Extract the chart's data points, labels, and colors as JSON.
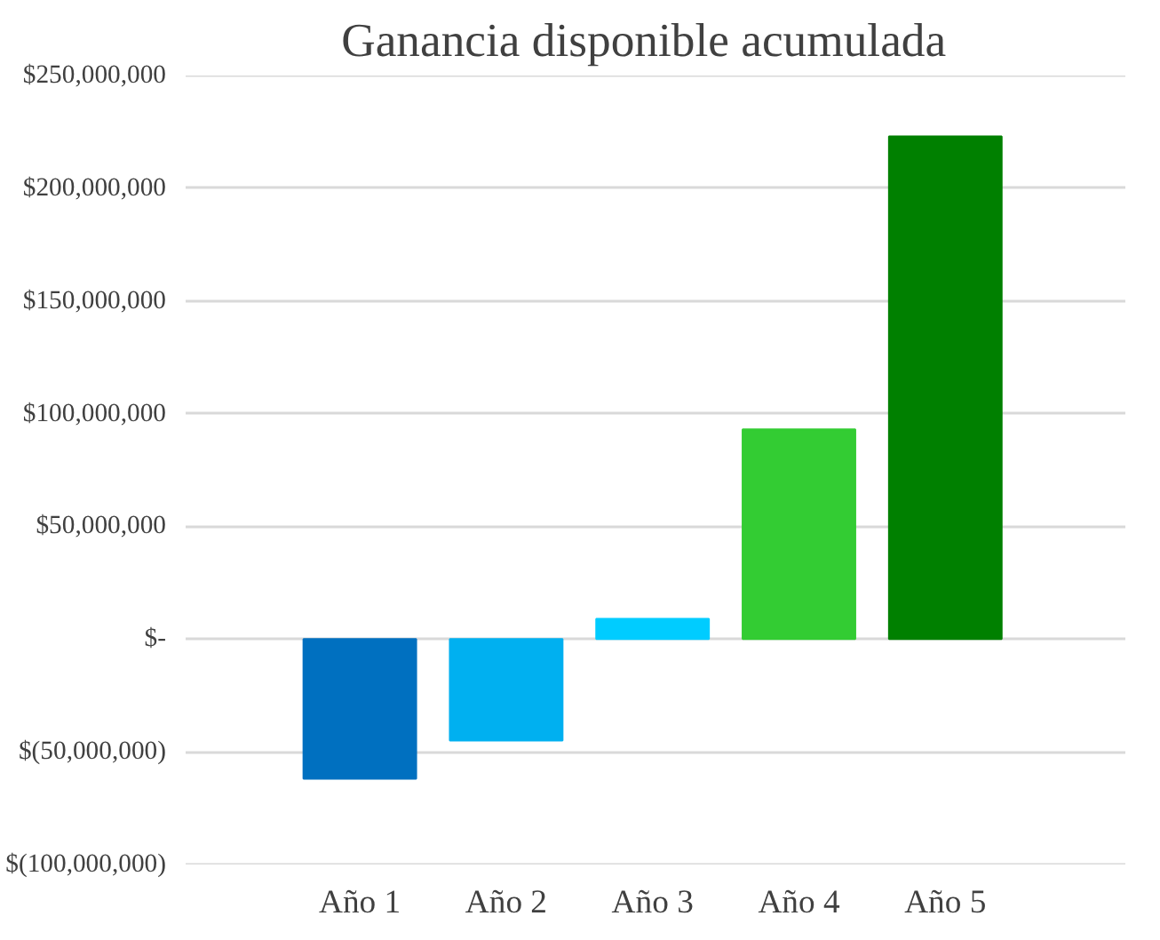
{
  "chart_data": {
    "type": "bar",
    "title": "Ganancia  disponible  acumulada",
    "categories": [
      "Año 1",
      "Año 2",
      "Año 3",
      "Año 4",
      "Año 5"
    ],
    "values": [
      -62000000,
      -45000000,
      9000000,
      93000000,
      223000000
    ],
    "colors": [
      "#0070c0",
      "#00b0f0",
      "#00ccff",
      "#33cc33",
      "#008000"
    ],
    "ylim": [
      -100000000,
      250000000
    ],
    "yticks": [
      {
        "value": -100000000,
        "label": "$(100,000,000)"
      },
      {
        "value": -50000000,
        "label": "$(50,000,000)"
      },
      {
        "value": 0,
        "label": "$-"
      },
      {
        "value": 50000000,
        "label": "$50,000,000"
      },
      {
        "value": 100000000,
        "label": "$100,000,000"
      },
      {
        "value": 150000000,
        "label": "$150,000,000"
      },
      {
        "value": 200000000,
        "label": "$200,000,000"
      },
      {
        "value": 250000000,
        "label": "$250,000,000"
      }
    ],
    "grid": "y"
  }
}
